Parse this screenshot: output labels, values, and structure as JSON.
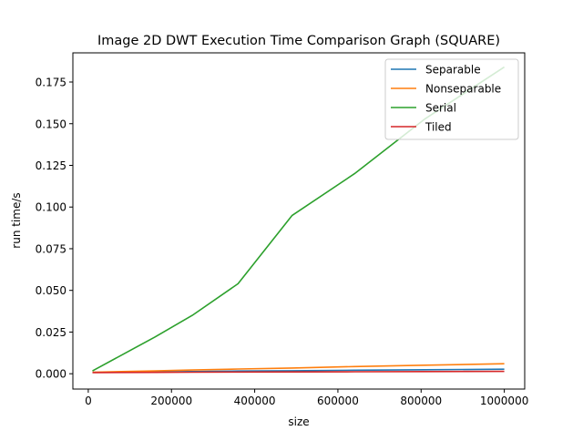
{
  "chart_data": {
    "type": "line",
    "title": "Image 2D DWT Execution Time Comparison Graph (SQUARE)",
    "xlabel": "size",
    "ylabel": "run time/s",
    "xlim": [
      -37000,
      1049000
    ],
    "ylim": [
      -0.0092,
      0.1925
    ],
    "x_ticks": [
      0,
      200000,
      400000,
      600000,
      800000,
      1000000
    ],
    "x_tick_labels": [
      "0",
      "200000",
      "400000",
      "600000",
      "800000",
      "1000000"
    ],
    "y_ticks": [
      0.0,
      0.025,
      0.05,
      0.075,
      0.1,
      0.125,
      0.15,
      0.175
    ],
    "y_tick_labels": [
      "0.000",
      "0.025",
      "0.050",
      "0.075",
      "0.100",
      "0.125",
      "0.150",
      "0.175"
    ],
    "grid": false,
    "legend_position": "top-right",
    "x": [
      10000,
      160000,
      250000,
      360000,
      490000,
      640000,
      810000,
      1000000
    ],
    "series": [
      {
        "name": "Separable",
        "color": "#1f77b4",
        "values": [
          0.0008,
          0.0011,
          0.0013,
          0.0016,
          0.0018,
          0.0021,
          0.0024,
          0.0027
        ]
      },
      {
        "name": "Nonseparable",
        "color": "#ff7f0e",
        "values": [
          0.0009,
          0.0017,
          0.0022,
          0.0028,
          0.0034,
          0.0043,
          0.0051,
          0.006
        ]
      },
      {
        "name": "Serial",
        "color": "#2ca02c",
        "values": [
          0.0017,
          0.022,
          0.035,
          0.054,
          0.095,
          0.12,
          0.153,
          0.184
        ]
      },
      {
        "name": "Tiled",
        "color": "#d62728",
        "values": [
          0.0007,
          0.0008,
          0.0009,
          0.001,
          0.0011,
          0.0012,
          0.0013,
          0.0014
        ]
      }
    ]
  }
}
